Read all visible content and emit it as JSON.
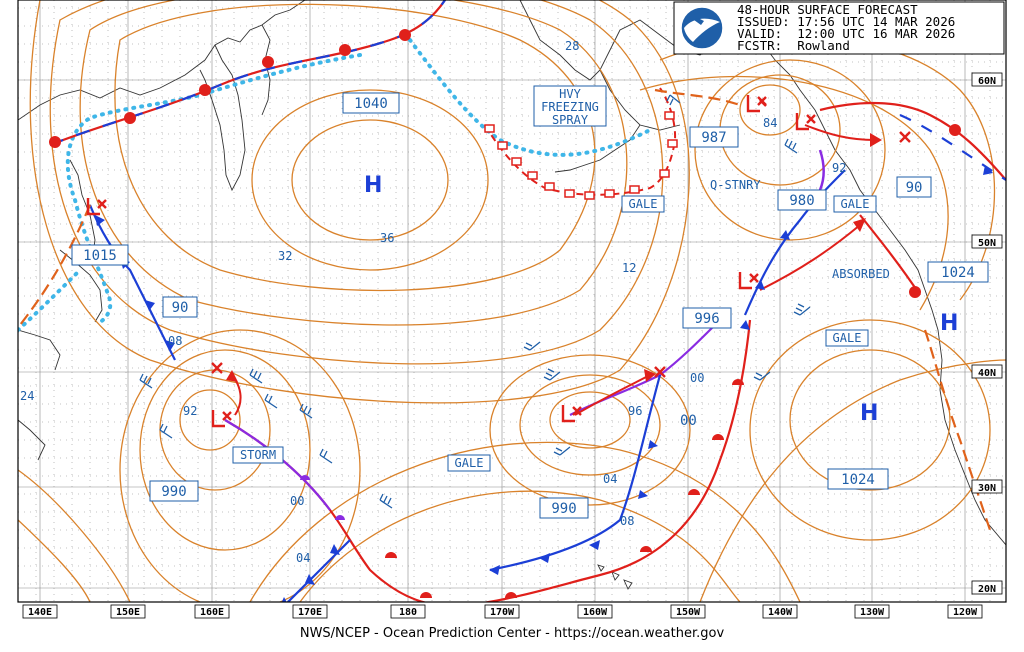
{
  "header": {
    "line1": "48-HOUR SURFACE FORECAST",
    "line2": "ISSUED: 17:56 UTC 14 MAR 2026",
    "line3": "VALID:  12:00 UTC 16 MAR 2026",
    "line4": "FCSTR:  Rowland",
    "logo_text": "NOAA"
  },
  "footer": "NWS/NCEP - Ocean Prediction Center - https://ocean.weather.gov",
  "longitudes": [
    "140E",
    "150E",
    "160E",
    "170E",
    "180",
    "170W",
    "160W",
    "150W",
    "140W",
    "130W",
    "120W",
    "110W"
  ],
  "latitudes": [
    "60N",
    "50N",
    "40N",
    "30N",
    "20N"
  ],
  "highs": [
    {
      "symbol": "H",
      "pressure": "1040"
    },
    {
      "symbol": "H",
      "pressure": "1024"
    },
    {
      "symbol": "H",
      "pressure": "1024"
    }
  ],
  "high_pressure_labels": [
    "1040",
    "1024",
    "1024"
  ],
  "low_pressure_labels": [
    "1015",
    "987",
    "980",
    "996",
    "990",
    "990",
    "90",
    "90"
  ],
  "warnings": [
    "HVY FREEZING SPRAY",
    "GALE",
    "GALE",
    "GALE",
    "GALE",
    "STORM"
  ],
  "annotations": [
    "Q-STNRY",
    "ABSORBED"
  ],
  "isobar_labels": [
    "28",
    "32",
    "36",
    "12",
    "84",
    "92",
    "08",
    "92",
    "00",
    "04",
    "96",
    "04",
    "08",
    "00",
    "24"
  ],
  "colors": {
    "isobar": "#d9822b",
    "cold_front": "#1c3fd6",
    "warm_front": "#e0201b",
    "occluded_front": "#8a2be2",
    "ice_edge": "#3fb6e8",
    "freezing_spray": "#e0201b",
    "text": "#1f5fa8"
  }
}
